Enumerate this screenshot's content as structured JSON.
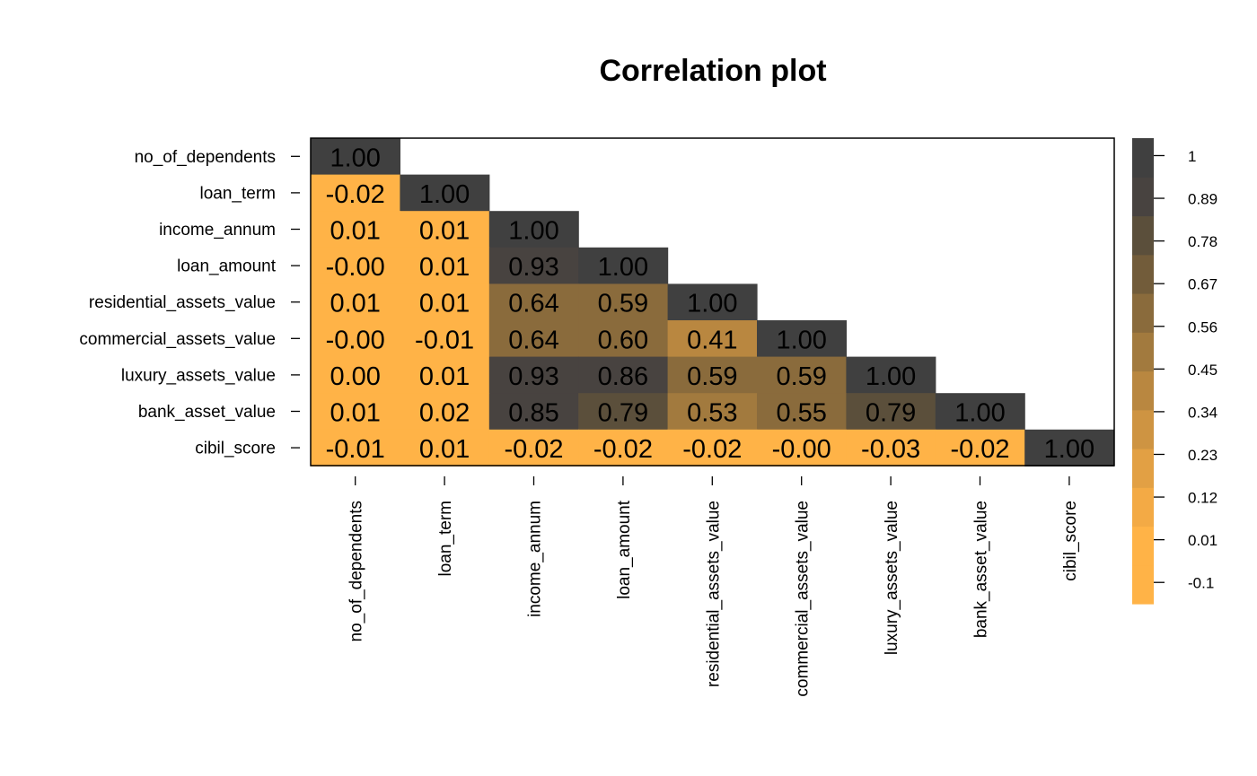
{
  "chart_data": {
    "type": "heatmap",
    "title": "Correlation plot",
    "variables": [
      "no_of_dependents",
      "loan_term",
      "income_annum",
      "loan_amount",
      "residential_assets_value",
      "commercial_assets_value",
      "luxury_assets_value",
      "bank_asset_value",
      "cibil_score"
    ],
    "matrix": [
      [
        1.0
      ],
      [
        -0.02,
        1.0
      ],
      [
        0.01,
        0.01,
        1.0
      ],
      [
        -0.0,
        0.01,
        0.93,
        1.0
      ],
      [
        0.01,
        0.01,
        0.64,
        0.59,
        1.0
      ],
      [
        -0.0,
        -0.01,
        0.64,
        0.6,
        0.41,
        1.0
      ],
      [
        0.0,
        0.01,
        0.93,
        0.86,
        0.59,
        0.59,
        1.0
      ],
      [
        0.01,
        0.02,
        0.85,
        0.79,
        0.53,
        0.55,
        0.79,
        1.0
      ],
      [
        -0.01,
        0.01,
        -0.02,
        -0.02,
        -0.02,
        -0.0,
        -0.03,
        -0.02,
        1.0
      ]
    ],
    "cell_labels": [
      [
        "1.00"
      ],
      [
        "-0.02",
        "1.00"
      ],
      [
        "0.01",
        "0.01",
        "1.00"
      ],
      [
        "-0.00",
        "0.01",
        "0.93",
        "1.00"
      ],
      [
        "0.01",
        "0.01",
        "0.64",
        "0.59",
        "1.00"
      ],
      [
        "-0.00",
        "-0.01",
        "0.64",
        "0.60",
        "0.41",
        "1.00"
      ],
      [
        "0.00",
        "0.01",
        "0.93",
        "0.86",
        "0.59",
        "0.59",
        "1.00"
      ],
      [
        "0.01",
        "0.02",
        "0.85",
        "0.79",
        "0.53",
        "0.55",
        "0.79",
        "1.00"
      ],
      [
        "-0.01",
        "0.01",
        "-0.02",
        "-0.02",
        "-0.02",
        "-0.00",
        "-0.03",
        "-0.02",
        "1.00"
      ]
    ],
    "triangle": "lower",
    "colorbar": {
      "ticks": [
        "1",
        "0.89",
        "0.78",
        "0.67",
        "0.56",
        "0.45",
        "0.34",
        "0.23",
        "0.12",
        "0.01",
        "-0.1"
      ],
      "tick_values": [
        1,
        0.89,
        0.78,
        0.67,
        0.56,
        0.45,
        0.34,
        0.23,
        0.12,
        0.01,
        -0.1
      ],
      "range": [
        -0.155,
        1.045
      ],
      "colors_low_to_high": [
        "#FFB347",
        "#FFB347",
        "#F3AA45",
        "#E2A044",
        "#CE9442",
        "#B98740",
        "#A27A3E",
        "#8A6B3C",
        "#725C3A",
        "#5B4F3B",
        "#484340",
        "#404040"
      ]
    }
  }
}
